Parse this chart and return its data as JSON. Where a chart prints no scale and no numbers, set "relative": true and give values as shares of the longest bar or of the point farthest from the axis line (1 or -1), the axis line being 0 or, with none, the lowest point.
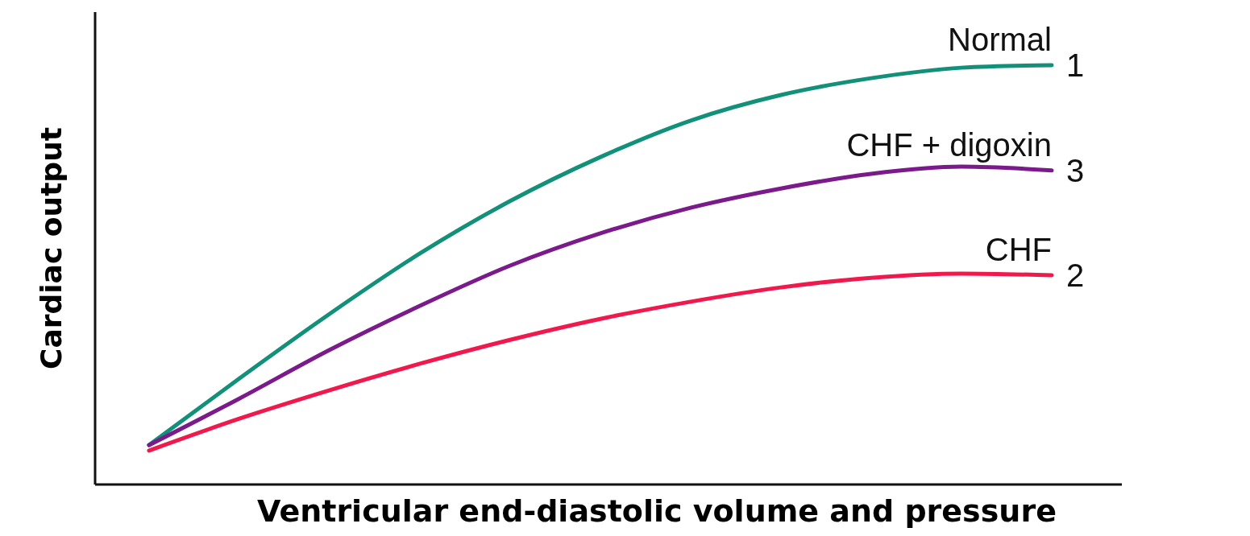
{
  "chart_data": {
    "type": "line",
    "relative": true,
    "xlabel": "Ventricular end-diastolic volume and pressure",
    "ylabel": "Cardiac output",
    "categories": [
      null,
      null,
      null,
      null,
      null,
      null,
      null,
      null,
      null,
      null,
      null
    ],
    "series": [
      {
        "name": "Normal",
        "color": "#13907a",
        "values": [
          0.094,
          0.253,
          0.407,
          0.551,
          0.676,
          0.781,
          0.868,
          0.929,
          0.969,
          0.994,
          1.0
        ]
      },
      {
        "name": "CHF + digoxin",
        "color": "#7b1a8a",
        "values": [
          0.094,
          0.205,
          0.321,
          0.426,
          0.522,
          0.599,
          0.66,
          0.706,
          0.741,
          0.758,
          0.749
        ]
      },
      {
        "name": "CHF",
        "color": "#f0194d",
        "values": [
          0.081,
          0.157,
          0.225,
          0.288,
          0.345,
          0.395,
          0.436,
          0.47,
          0.493,
          0.503,
          0.499
        ]
      }
    ],
    "annotations": [
      "1",
      "3",
      "2"
    ]
  }
}
